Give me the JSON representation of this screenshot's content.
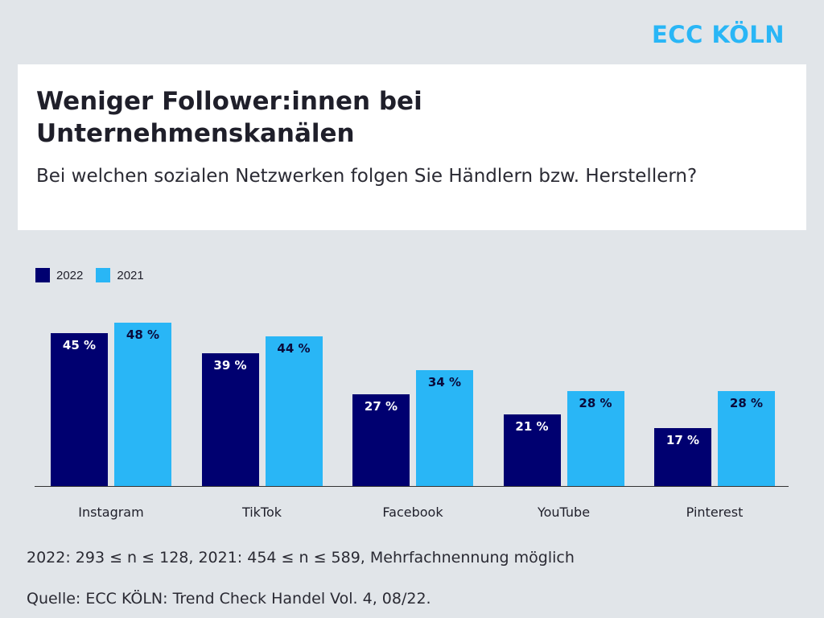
{
  "logo": "ECC KÖLN",
  "header": {
    "title": "Weniger Follower:innen bei Unternehmenskanälen",
    "subtitle": "Bei welchen sozialen Netzwerken folgen Sie Händlern bzw. Herstellern?"
  },
  "colors": {
    "series_2022": "#000070",
    "series_2021": "#29b6f6",
    "background": "#e1e5e9",
    "brand": "#29b6f6"
  },
  "chart_data": {
    "type": "bar",
    "categories": [
      "Instagram",
      "TikTok",
      "Facebook",
      "YouTube",
      "Pinterest"
    ],
    "series": [
      {
        "name": "2022",
        "values": [
          45,
          39,
          27,
          21,
          17
        ]
      },
      {
        "name": "2021",
        "values": [
          48,
          44,
          34,
          28,
          28
        ]
      }
    ],
    "value_labels": [
      [
        "45 %",
        "39 %",
        "27 %",
        "21 %",
        "17 %"
      ],
      [
        "48 %",
        "44 %",
        "34 %",
        "28 %",
        "28 %"
      ]
    ],
    "ylim": [
      0,
      50
    ],
    "grid": false,
    "legend_position": "top-left"
  },
  "footer": {
    "sample_note": "2022: 293 ≤ n ≤ 128, 2021: 454 ≤ n ≤ 589, Mehrfachnennung möglich",
    "source": "Quelle: ECC KÖLN: Trend Check Handel Vol. 4, 08/22."
  }
}
